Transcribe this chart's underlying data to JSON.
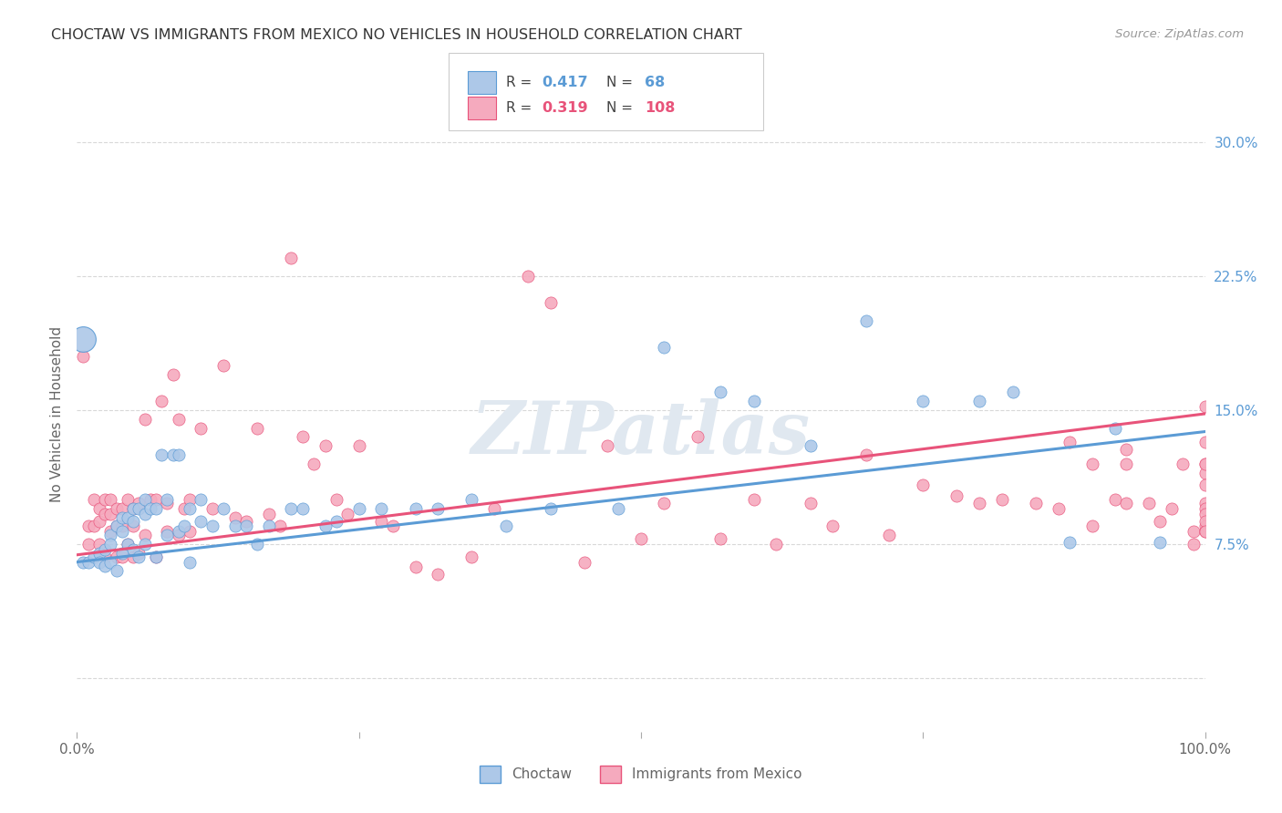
{
  "title": "CHOCTAW VS IMMIGRANTS FROM MEXICO NO VEHICLES IN HOUSEHOLD CORRELATION CHART",
  "source": "Source: ZipAtlas.com",
  "ylabel": "No Vehicles in Household",
  "xlim": [
    0.0,
    1.0
  ],
  "ylim": [
    -0.03,
    0.325
  ],
  "yticks": [
    0.0,
    0.075,
    0.15,
    0.225,
    0.3
  ],
  "yticklabels": [
    "",
    "7.5%",
    "15.0%",
    "22.5%",
    "30.0%"
  ],
  "xticks": [
    0.0,
    0.25,
    0.5,
    0.75,
    1.0
  ],
  "xticklabels": [
    "0.0%",
    "",
    "",
    "",
    "100.0%"
  ],
  "choctaw_R": 0.417,
  "choctaw_N": 68,
  "mexico_R": 0.319,
  "mexico_N": 108,
  "choctaw_color": "#adc8e8",
  "mexico_color": "#f5aabe",
  "choctaw_line_color": "#5b9bd5",
  "mexico_line_color": "#e8537a",
  "blue_line_start": 0.065,
  "blue_line_end": 0.138,
  "pink_line_start": 0.069,
  "pink_line_end": 0.148,
  "choctaw_x": [
    0.005,
    0.01,
    0.015,
    0.02,
    0.02,
    0.025,
    0.025,
    0.03,
    0.03,
    0.03,
    0.035,
    0.035,
    0.04,
    0.04,
    0.04,
    0.045,
    0.045,
    0.05,
    0.05,
    0.05,
    0.055,
    0.055,
    0.06,
    0.06,
    0.06,
    0.065,
    0.07,
    0.07,
    0.075,
    0.08,
    0.08,
    0.085,
    0.09,
    0.09,
    0.095,
    0.1,
    0.1,
    0.11,
    0.11,
    0.12,
    0.13,
    0.14,
    0.15,
    0.16,
    0.17,
    0.19,
    0.2,
    0.22,
    0.23,
    0.25,
    0.27,
    0.3,
    0.32,
    0.35,
    0.38,
    0.42,
    0.48,
    0.52,
    0.57,
    0.6,
    0.65,
    0.7,
    0.75,
    0.8,
    0.83,
    0.88,
    0.92,
    0.96
  ],
  "choctaw_y": [
    0.065,
    0.065,
    0.068,
    0.07,
    0.065,
    0.072,
    0.063,
    0.08,
    0.075,
    0.065,
    0.085,
    0.06,
    0.09,
    0.082,
    0.07,
    0.09,
    0.075,
    0.095,
    0.088,
    0.072,
    0.095,
    0.068,
    0.1,
    0.092,
    0.075,
    0.095,
    0.095,
    0.068,
    0.125,
    0.1,
    0.08,
    0.125,
    0.125,
    0.082,
    0.085,
    0.095,
    0.065,
    0.1,
    0.088,
    0.085,
    0.095,
    0.085,
    0.085,
    0.075,
    0.085,
    0.095,
    0.095,
    0.085,
    0.088,
    0.095,
    0.095,
    0.095,
    0.095,
    0.1,
    0.085,
    0.095,
    0.095,
    0.185,
    0.16,
    0.155,
    0.13,
    0.2,
    0.155,
    0.155,
    0.16,
    0.076,
    0.14,
    0.076
  ],
  "mexico_x": [
    0.005,
    0.01,
    0.01,
    0.015,
    0.015,
    0.02,
    0.02,
    0.02,
    0.025,
    0.025,
    0.025,
    0.03,
    0.03,
    0.03,
    0.035,
    0.035,
    0.035,
    0.04,
    0.04,
    0.04,
    0.045,
    0.045,
    0.05,
    0.05,
    0.05,
    0.055,
    0.055,
    0.06,
    0.06,
    0.065,
    0.07,
    0.07,
    0.075,
    0.08,
    0.08,
    0.085,
    0.09,
    0.09,
    0.095,
    0.1,
    0.1,
    0.11,
    0.12,
    0.13,
    0.14,
    0.15,
    0.16,
    0.17,
    0.18,
    0.19,
    0.2,
    0.21,
    0.22,
    0.23,
    0.24,
    0.25,
    0.27,
    0.28,
    0.3,
    0.32,
    0.35,
    0.37,
    0.4,
    0.42,
    0.45,
    0.47,
    0.5,
    0.52,
    0.55,
    0.57,
    0.6,
    0.62,
    0.65,
    0.67,
    0.7,
    0.72,
    0.75,
    0.78,
    0.8,
    0.82,
    0.85,
    0.87,
    0.88,
    0.9,
    0.9,
    0.92,
    0.93,
    0.93,
    0.93,
    0.95,
    0.96,
    0.97,
    0.98,
    0.99,
    0.99,
    1.0,
    1.0,
    1.0,
    1.0,
    1.0,
    1.0,
    1.0,
    1.0,
    1.0,
    1.0,
    1.0,
    1.0,
    1.0
  ],
  "mexico_y": [
    0.18,
    0.085,
    0.075,
    0.1,
    0.085,
    0.095,
    0.088,
    0.075,
    0.1,
    0.092,
    0.068,
    0.1,
    0.092,
    0.082,
    0.095,
    0.085,
    0.068,
    0.095,
    0.085,
    0.068,
    0.1,
    0.075,
    0.095,
    0.085,
    0.068,
    0.098,
    0.07,
    0.145,
    0.08,
    0.1,
    0.1,
    0.068,
    0.155,
    0.098,
    0.082,
    0.17,
    0.145,
    0.08,
    0.095,
    0.1,
    0.082,
    0.14,
    0.095,
    0.175,
    0.09,
    0.088,
    0.14,
    0.092,
    0.085,
    0.235,
    0.135,
    0.12,
    0.13,
    0.1,
    0.092,
    0.13,
    0.088,
    0.085,
    0.062,
    0.058,
    0.068,
    0.095,
    0.225,
    0.21,
    0.065,
    0.13,
    0.078,
    0.098,
    0.135,
    0.078,
    0.1,
    0.075,
    0.098,
    0.085,
    0.125,
    0.08,
    0.108,
    0.102,
    0.098,
    0.1,
    0.098,
    0.095,
    0.132,
    0.12,
    0.085,
    0.1,
    0.098,
    0.12,
    0.128,
    0.098,
    0.088,
    0.095,
    0.12,
    0.082,
    0.075,
    0.098,
    0.085,
    0.095,
    0.092,
    0.152,
    0.082,
    0.088,
    0.12,
    0.115,
    0.132,
    0.12,
    0.108,
    0.082
  ],
  "watermark_text": "ZIPatlas",
  "background_color": "#ffffff",
  "grid_color": "#d8d8d8",
  "tick_color": "#aaaaaa",
  "label_color": "#666666",
  "title_color": "#333333",
  "source_color": "#999999",
  "ytick_color": "#5b9bd5"
}
